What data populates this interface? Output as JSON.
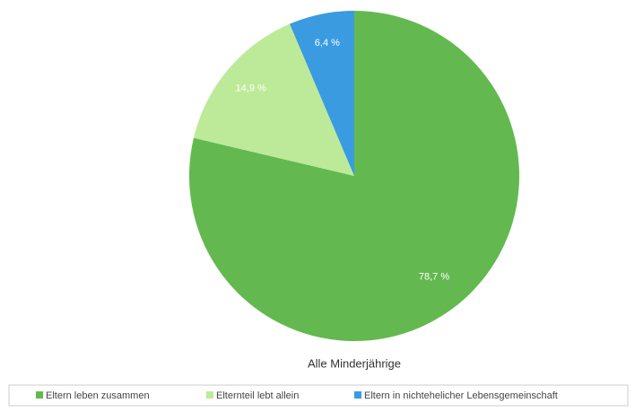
{
  "chart_data": {
    "type": "pie",
    "title": "Alle Minderjährige",
    "categories": [
      "Eltern leben zusammen",
      "Elternteil lebt allein",
      "Eltern in nichtehelicher Lebensgemeinschaft"
    ],
    "values": [
      78.7,
      14.9,
      6.4
    ],
    "value_labels": [
      "78,7 %",
      "14,9 %",
      "6,4 %"
    ],
    "colors": [
      "#63b94f",
      "#bdea98",
      "#3a9be0"
    ]
  }
}
